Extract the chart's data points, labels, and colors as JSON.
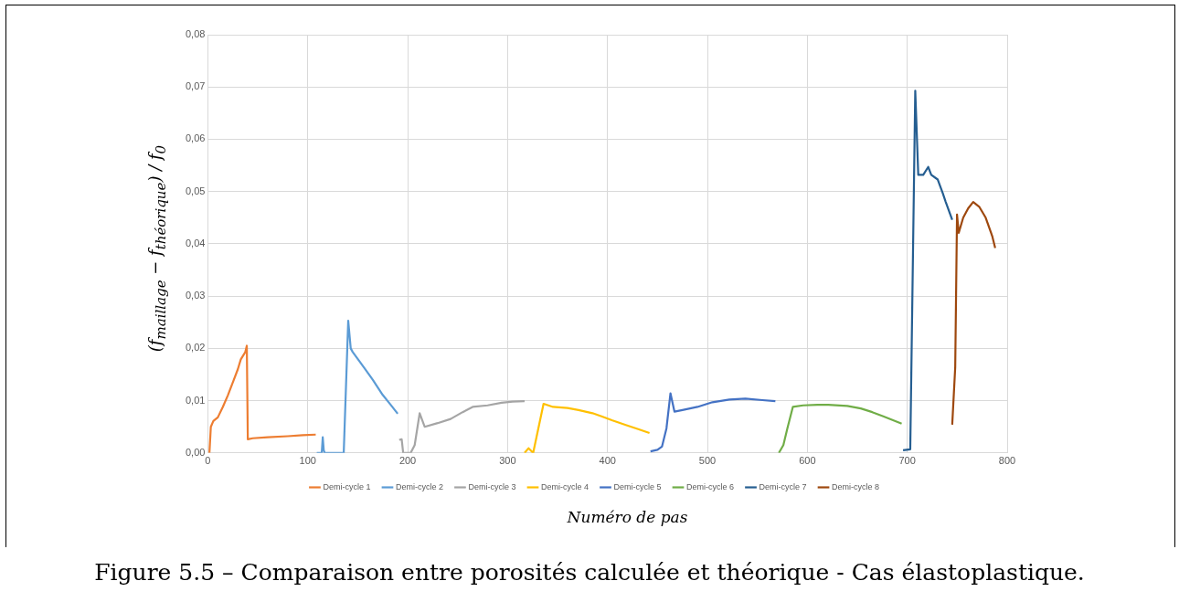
{
  "chart_data": {
    "type": "line",
    "xlabel": "Numéro de pas",
    "ylabel": "(f$_{maillage}$ − f$_{théorique}$) / f$_{0}$",
    "annotations": [
      "Figure 5.5 – Comparaison entre porosités calculée et théorique - Cas élastoplastique."
    ],
    "xlim": [
      0,
      800
    ],
    "xticks": [
      0,
      100,
      200,
      300,
      400,
      500,
      600,
      700,
      800
    ],
    "ylim": [
      0,
      0.08
    ],
    "yticks": [
      {
        "value": 0,
        "label": "0,00"
      },
      {
        "value": 0.01,
        "label": "0,01"
      },
      {
        "value": 0.02,
        "label": "0,02"
      },
      {
        "value": 0.03,
        "label": "0,03"
      },
      {
        "value": 0.04,
        "label": "0,04"
      },
      {
        "value": 0.05,
        "label": "0,05"
      },
      {
        "value": 0.06,
        "label": "0,06"
      },
      {
        "value": 0.07,
        "label": "0,07"
      },
      {
        "value": 0.08,
        "label": "0,08"
      }
    ],
    "grid": true,
    "legend": "bottom",
    "marker": "none",
    "line_style": "solid",
    "series": [
      {
        "name": "Demi-cycle 1",
        "color": "#ed7d31",
        "x": [
          1.6,
          3,
          5.5,
          10,
          15,
          20,
          25,
          30,
          33,
          37.5,
          39,
          40,
          45,
          60,
          80,
          95,
          108
        ],
        "values": [
          0,
          0.005,
          0.0061,
          0.0068,
          0.0088,
          0.011,
          0.0135,
          0.016,
          0.0179,
          0.0193,
          0.0205,
          0.0026,
          0.0028,
          0.003,
          0.0032,
          0.0034,
          0.0035
        ]
      },
      {
        "name": "Demi-cycle 2",
        "color": "#5b9bd5",
        "x": [
          109,
          114,
          115,
          116,
          117,
          125,
          136,
          140.5,
          143,
          145,
          156,
          165,
          175,
          183,
          190
        ],
        "values": [
          0,
          0,
          0.003,
          0.0005,
          0,
          0,
          0,
          0.0253,
          0.02,
          0.0193,
          0.0164,
          0.014,
          0.0111,
          0.0092,
          0.0075
        ]
      },
      {
        "name": "Demi-cycle 3",
        "color": "#a5a5a5",
        "x": [
          191.5,
          194,
          195.5,
          203,
          207,
          212,
          217,
          230,
          243,
          255,
          265,
          280,
          294,
          305,
          317
        ],
        "values": [
          0.0025,
          0.0026,
          0,
          0,
          0.0015,
          0.0076,
          0.005,
          0.0057,
          0.0065,
          0.0078,
          0.0088,
          0.0091,
          0.0096,
          0.0098,
          0.0099
        ]
      },
      {
        "name": "Demi-cycle 4",
        "color": "#ffc000",
        "x": [
          317,
          321,
          325.6,
          330,
          336,
          345.5,
          360,
          371,
          385,
          394,
          405,
          419,
          430,
          442
        ],
        "values": [
          0,
          0.0009,
          0,
          0.004,
          0.0094,
          0.0088,
          0.0086,
          0.0082,
          0.0076,
          0.007,
          0.0062,
          0.0053,
          0.0046,
          0.0038
        ]
      },
      {
        "name": "Demi-cycle 5",
        "color": "#4472c4",
        "x": [
          443,
          450,
          454.5,
          459,
          463,
          467,
          475,
          490,
          505,
          522,
          538,
          555,
          568
        ],
        "values": [
          0.0003,
          0.0006,
          0.0012,
          0.0047,
          0.0114,
          0.0079,
          0.0082,
          0.0088,
          0.0097,
          0.0102,
          0.0104,
          0.0101,
          0.0099
        ]
      },
      {
        "name": "Demi-cycle 6",
        "color": "#70ad47",
        "x": [
          571.5,
          576,
          580,
          585.5,
          595.8,
          610,
          621,
          640,
          653.5,
          665,
          676,
          694.4
        ],
        "values": [
          0,
          0.0015,
          0.0047,
          0.0088,
          0.0091,
          0.0092,
          0.0092,
          0.009,
          0.0085,
          0.0078,
          0.007,
          0.0056
        ]
      },
      {
        "name": "Demi-cycle 7",
        "color": "#255e91",
        "x": [
          695.8,
          703,
          708,
          711,
          716,
          721,
          724,
          730.5,
          735.5,
          738.5,
          745
        ],
        "values": [
          0.0005,
          0.0007,
          0.0693,
          0.0532,
          0.0532,
          0.0547,
          0.0532,
          0.0523,
          0.0497,
          0.048,
          0.0446
        ]
      },
      {
        "name": "Demi-cycle 8",
        "color": "#9e480e",
        "x": [
          745,
          748,
          749.8,
          751.5,
          756,
          761,
          766,
          772,
          778.5,
          785,
          788
        ],
        "values": [
          0.0054,
          0.0164,
          0.0456,
          0.0421,
          0.045,
          0.0468,
          0.048,
          0.0471,
          0.045,
          0.0415,
          0.0392
        ]
      }
    ]
  }
}
